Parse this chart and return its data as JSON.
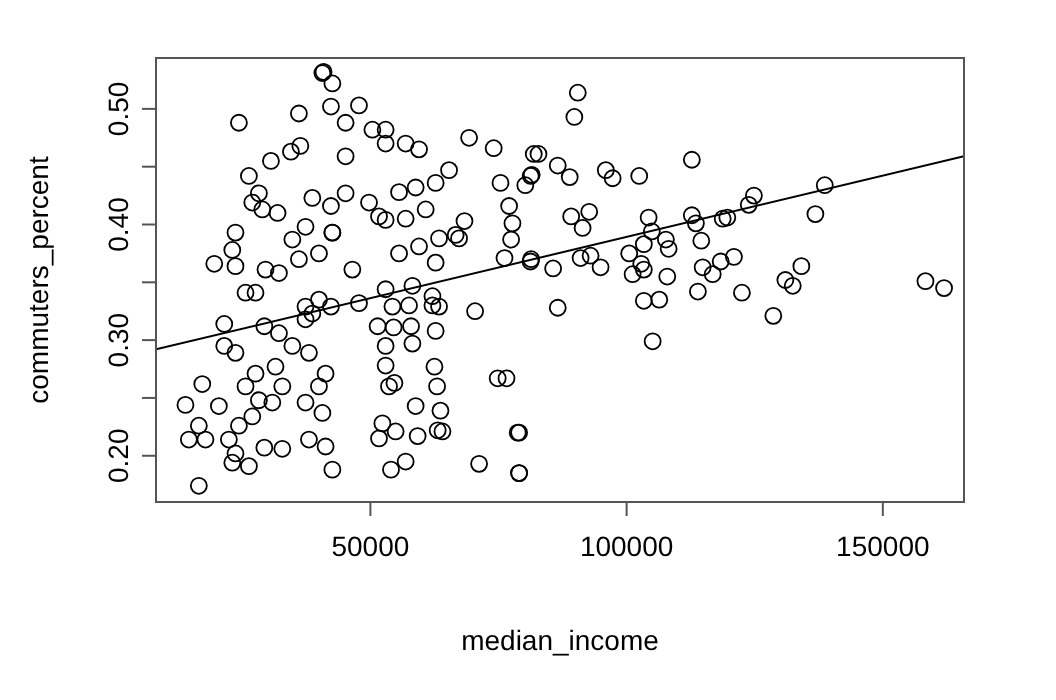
{
  "chart_data": {
    "type": "scatter",
    "xlabel": "median_income",
    "ylabel": "commuters_percent",
    "xlim": [
      8160,
      165840
    ],
    "ylim": [
      0.16,
      0.544
    ],
    "xticks": [
      50000,
      100000,
      150000
    ],
    "yticks": [
      {
        "value": 0.2,
        "label": "0.20"
      },
      {
        "value": 0.25,
        "label": null
      },
      {
        "value": 0.3,
        "label": "0.30"
      },
      {
        "value": 0.35,
        "label": null
      },
      {
        "value": 0.4,
        "label": "0.40"
      },
      {
        "value": 0.45,
        "label": null
      },
      {
        "value": 0.5,
        "label": "0.50"
      }
    ],
    "series": [
      {
        "marker": "circle",
        "color": "#000000",
        "x": [
          90470,
          89800,
          82800,
          86560,
          88900,
          95940,
          97270,
          102460,
          112730,
          138670,
          136840,
          124840,
          123830,
          119650,
          118750,
          113520,
          112730,
          114570,
          104300,
          104920,
          103360,
          107660,
          108200,
          100510,
          101170,
          103360,
          102850,
          107930,
          103360,
          106370,
          105080,
          114840,
          116800,
          118360,
          120940,
          113910,
          122500,
          128630,
          130980,
          132420,
          134100,
          158320,
          161950,
          89180,
          92700,
          91410,
          91020,
          92970,
          94920,
          85660,
          81250,
          86560,
          80230,
          81290,
          79020,
          79020,
          40860,
          42580,
          69260,
          74060,
          81880,
          81480,
          75390,
          77070,
          77720,
          77460,
          76170,
          81370,
          70430,
          74840,
          76560,
          78750,
          71210,
          79020,
          62730,
          62500,
          63010,
          63670,
          64060,
          63130,
          59220,
          56880,
          54020,
          58830,
          54920,
          51680,
          52340,
          53630,
          54690,
          52970,
          52970,
          58200,
          57930,
          54530,
          51410,
          54300,
          57540,
          62110,
          63400,
          62110,
          52970,
          58200,
          47770,
          46480,
          62730,
          67300,
          66640,
          63400,
          59490,
          55590,
          52970,
          56880,
          60790,
          68360,
          65350,
          62730,
          58830,
          55590,
          59490,
          56880,
          52970,
          50390,
          47770,
          45160,
          45160,
          45160,
          49730,
          51680,
          42580,
          52970,
          16520,
          13910,
          14570,
          17810,
          16520,
          17190,
          20430,
          23050,
          26290,
          29300,
          32810,
          24340,
          21480,
          21480,
          23670,
          19530,
          23670,
          23050,
          23670,
          25630,
          26290,
          28240,
          26950,
          28910,
          31880,
          30590,
          34490,
          36330,
          38670,
          29530,
          34770,
          37340,
          39960,
          32150,
          36050,
          27580,
          29300,
          32150,
          37340,
          38670,
          37340,
          39960,
          34770,
          38010,
          31480,
          32810,
          27580,
          25630,
          28240,
          30860,
          26950,
          24340,
          23670,
          22380,
          37340,
          39960,
          38010,
          41250,
          42580,
          41250,
          40630,
          36050,
          40630,
          42300,
          42300,
          42300,
          42580
        ],
        "values": [
          0.514,
          0.493,
          0.461,
          0.451,
          0.441,
          0.447,
          0.44,
          0.442,
          0.456,
          0.434,
          0.409,
          0.425,
          0.417,
          0.406,
          0.405,
          0.401,
          0.408,
          0.386,
          0.406,
          0.394,
          0.383,
          0.387,
          0.379,
          0.375,
          0.357,
          0.361,
          0.366,
          0.355,
          0.334,
          0.335,
          0.299,
          0.363,
          0.357,
          0.368,
          0.372,
          0.342,
          0.341,
          0.321,
          0.352,
          0.347,
          0.364,
          0.351,
          0.345,
          0.407,
          0.411,
          0.397,
          0.371,
          0.373,
          0.363,
          0.362,
          0.368,
          0.328,
          0.434,
          0.442,
          0.22,
          0.185,
          0.532,
          0.522,
          0.475,
          0.466,
          0.461,
          0.443,
          0.436,
          0.416,
          0.401,
          0.387,
          0.371,
          0.37,
          0.325,
          0.267,
          0.267,
          0.22,
          0.193,
          0.185,
          0.308,
          0.277,
          0.26,
          0.239,
          0.221,
          0.222,
          0.217,
          0.195,
          0.188,
          0.243,
          0.221,
          0.215,
          0.228,
          0.26,
          0.263,
          0.278,
          0.295,
          0.297,
          0.312,
          0.311,
          0.312,
          0.329,
          0.33,
          0.33,
          0.329,
          0.338,
          0.344,
          0.347,
          0.332,
          0.361,
          0.367,
          0.388,
          0.391,
          0.388,
          0.381,
          0.375,
          0.404,
          0.405,
          0.413,
          0.403,
          0.447,
          0.436,
          0.432,
          0.428,
          0.465,
          0.47,
          0.482,
          0.482,
          0.503,
          0.488,
          0.459,
          0.427,
          0.419,
          0.407,
          0.393,
          0.47,
          0.174,
          0.244,
          0.214,
          0.214,
          0.226,
          0.262,
          0.243,
          0.194,
          0.191,
          0.207,
          0.206,
          0.488,
          0.314,
          0.295,
          0.289,
          0.366,
          0.393,
          0.378,
          0.364,
          0.341,
          0.442,
          0.427,
          0.419,
          0.413,
          0.41,
          0.455,
          0.463,
          0.468,
          0.423,
          0.361,
          0.387,
          0.398,
          0.375,
          0.358,
          0.37,
          0.341,
          0.312,
          0.306,
          0.329,
          0.323,
          0.318,
          0.335,
          0.295,
          0.289,
          0.277,
          0.26,
          0.271,
          0.26,
          0.248,
          0.246,
          0.234,
          0.226,
          0.202,
          0.214,
          0.246,
          0.26,
          0.214,
          0.208,
          0.188,
          0.271,
          0.237,
          0.496,
          0.531,
          0.502,
          0.416,
          0.329,
          0.393
        ]
      },
      {
        "type": "line",
        "color": "#000000",
        "x": [
          8160,
          165840
        ],
        "values": [
          0.292,
          0.459
        ]
      }
    ]
  }
}
